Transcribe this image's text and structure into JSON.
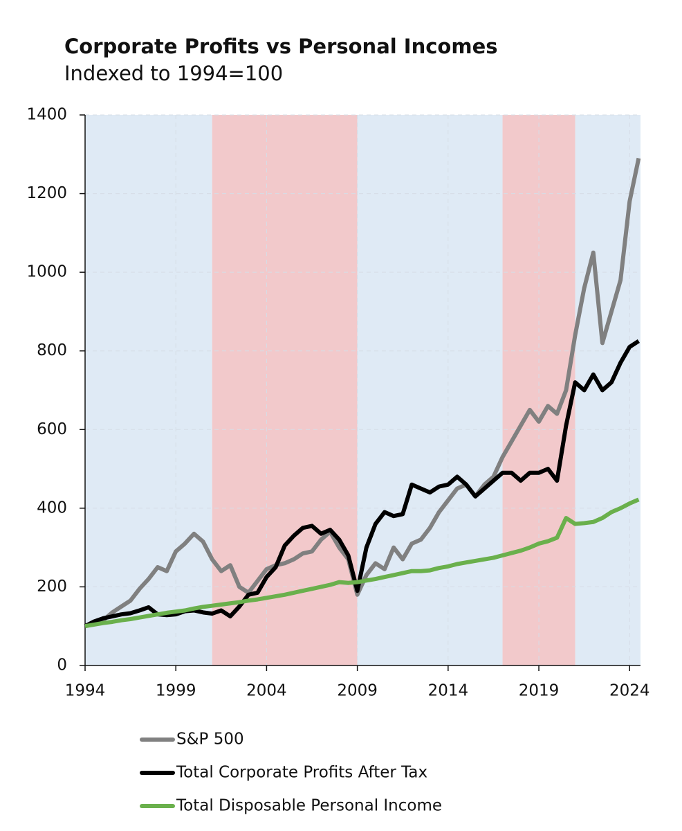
{
  "chart_data": {
    "type": "line",
    "title": "Corporate Profits vs Personal Incomes",
    "subtitle": "Indexed to 1994=100",
    "x": [
      1994,
      1994.5,
      1995,
      1995.5,
      1996,
      1996.5,
      1997,
      1997.5,
      1998,
      1998.5,
      1999,
      1999.5,
      2000,
      2000.5,
      2001,
      2001.5,
      2002,
      2002.5,
      2003,
      2003.5,
      2004,
      2004.5,
      2005,
      2005.5,
      2006,
      2006.5,
      2007,
      2007.5,
      2008,
      2008.5,
      2009,
      2009.5,
      2010,
      2010.5,
      2011,
      2011.5,
      2012,
      2012.5,
      2013,
      2013.5,
      2014,
      2014.5,
      2015,
      2015.5,
      2016,
      2016.5,
      2017,
      2017.5,
      2018,
      2018.5,
      2019,
      2019.5,
      2020,
      2020.5,
      2021,
      2021.5,
      2022,
      2022.5,
      2023,
      2023.5,
      2024,
      2024.5
    ],
    "series": [
      {
        "name": "S&P 500",
        "color": "#808080",
        "values": [
          100,
          105,
          115,
          135,
          150,
          165,
          195,
          220,
          250,
          240,
          290,
          310,
          335,
          315,
          270,
          240,
          255,
          200,
          185,
          215,
          245,
          255,
          260,
          270,
          285,
          290,
          320,
          340,
          300,
          270,
          180,
          230,
          260,
          245,
          300,
          270,
          310,
          320,
          350,
          390,
          420,
          450,
          460,
          430,
          460,
          480,
          530,
          570,
          610,
          650,
          620,
          660,
          640,
          700,
          840,
          960,
          1050,
          820,
          900,
          980,
          1180,
          1290
        ]
      },
      {
        "name": "Total Corporate Profits After Tax",
        "color": "#000000",
        "values": [
          100,
          112,
          120,
          125,
          130,
          133,
          140,
          148,
          130,
          128,
          130,
          138,
          140,
          135,
          132,
          140,
          125,
          150,
          180,
          185,
          225,
          250,
          305,
          330,
          350,
          355,
          335,
          345,
          320,
          280,
          190,
          300,
          360,
          390,
          380,
          385,
          460,
          450,
          440,
          455,
          460,
          480,
          460,
          430,
          450,
          470,
          490,
          490,
          470,
          490,
          490,
          500,
          470,
          610,
          720,
          700,
          740,
          700,
          720,
          770,
          810,
          825
        ]
      },
      {
        "name": "Total Disposable Personal Income",
        "color": "#6ab04c",
        "values": [
          100,
          104,
          108,
          111,
          115,
          118,
          122,
          126,
          130,
          134,
          137,
          140,
          145,
          149,
          152,
          155,
          158,
          161,
          165,
          168,
          172,
          176,
          180,
          185,
          190,
          195,
          200,
          205,
          212,
          210,
          212,
          216,
          220,
          225,
          230,
          235,
          240,
          240,
          242,
          248,
          252,
          258,
          262,
          266,
          270,
          274,
          280,
          286,
          292,
          300,
          310,
          316,
          325,
          375,
          360,
          362,
          365,
          375,
          390,
          400,
          412,
          422
        ]
      }
    ],
    "bands": [
      {
        "x0": 1994,
        "x1": 2001,
        "color": "#dfeaf5"
      },
      {
        "x0": 2001,
        "x1": 2009,
        "color": "#f2c9cb"
      },
      {
        "x0": 2009,
        "x1": 2017,
        "color": "#dfeaf5"
      },
      {
        "x0": 2017,
        "x1": 2021,
        "color": "#f2c9cb"
      },
      {
        "x0": 2021,
        "x1": 2024.6,
        "color": "#dfeaf5"
      }
    ],
    "xlim": [
      1994,
      2024.6
    ],
    "xticks": [
      1994,
      1999,
      2004,
      2009,
      2014,
      2019,
      2024
    ],
    "ylim": [
      0,
      1400
    ],
    "yticks": [
      0,
      200,
      400,
      600,
      800,
      1000,
      1200,
      1400
    ],
    "grid": true,
    "legend": "bottom"
  }
}
